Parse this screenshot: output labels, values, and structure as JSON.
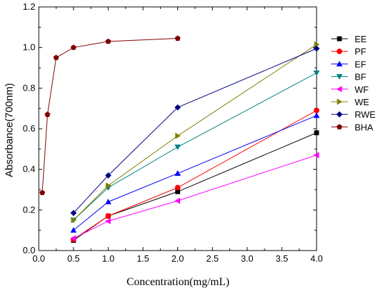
{
  "chart_data": {
    "type": "line",
    "title": "",
    "xlabel": "Concentration(mg/mL)",
    "ylabel": "Absorbance(700nm)",
    "xlim": [
      0.0,
      4.0
    ],
    "ylim": [
      0.0,
      1.2
    ],
    "xticks": [
      "0.0",
      "0.5",
      "1.0",
      "1.5",
      "2.0",
      "2.5",
      "3.0",
      "3.5",
      "4.0"
    ],
    "yticks": [
      "0.0",
      "0.2",
      "0.4",
      "0.6",
      "0.8",
      "1.0",
      "1.2"
    ],
    "legend_position": "right",
    "grid": false,
    "series": [
      {
        "name": "EE",
        "color": "#000000",
        "marker": "square",
        "x": [
          0.5,
          1.0,
          2.0,
          4.0
        ],
        "y": [
          0.05,
          0.17,
          0.29,
          0.58
        ]
      },
      {
        "name": "PF",
        "color": "#ff0000",
        "marker": "circle",
        "x": [
          0.5,
          1.0,
          2.0,
          4.0
        ],
        "y": [
          0.055,
          0.17,
          0.31,
          0.69
        ]
      },
      {
        "name": "EF",
        "color": "#0000ff",
        "marker": "triangle-up",
        "x": [
          0.5,
          1.0,
          2.0,
          4.0
        ],
        "y": [
          0.1,
          0.24,
          0.38,
          0.665
        ]
      },
      {
        "name": "BF",
        "color": "#008080",
        "marker": "triangle-down",
        "x": [
          0.5,
          1.0,
          2.0,
          4.0
        ],
        "y": [
          0.15,
          0.31,
          0.51,
          0.875
        ]
      },
      {
        "name": "WF",
        "color": "#ff00ff",
        "marker": "triangle-left",
        "x": [
          0.5,
          1.0,
          2.0,
          4.0
        ],
        "y": [
          0.06,
          0.145,
          0.245,
          0.47
        ]
      },
      {
        "name": "WE",
        "color": "#808000",
        "marker": "triangle-right",
        "x": [
          0.5,
          1.0,
          2.0,
          4.0
        ],
        "y": [
          0.15,
          0.32,
          0.565,
          1.015
        ]
      },
      {
        "name": "RWE",
        "color": "#000080",
        "marker": "diamond",
        "x": [
          0.5,
          1.0,
          2.0,
          4.0
        ],
        "y": [
          0.185,
          0.37,
          0.705,
          0.995
        ]
      },
      {
        "name": "BHA",
        "color": "#800000",
        "marker": "pentagon",
        "x": [
          0.05,
          0.125,
          0.25,
          0.5,
          1.0,
          2.0
        ],
        "y": [
          0.285,
          0.67,
          0.95,
          1.0,
          1.03,
          1.045
        ]
      }
    ]
  }
}
